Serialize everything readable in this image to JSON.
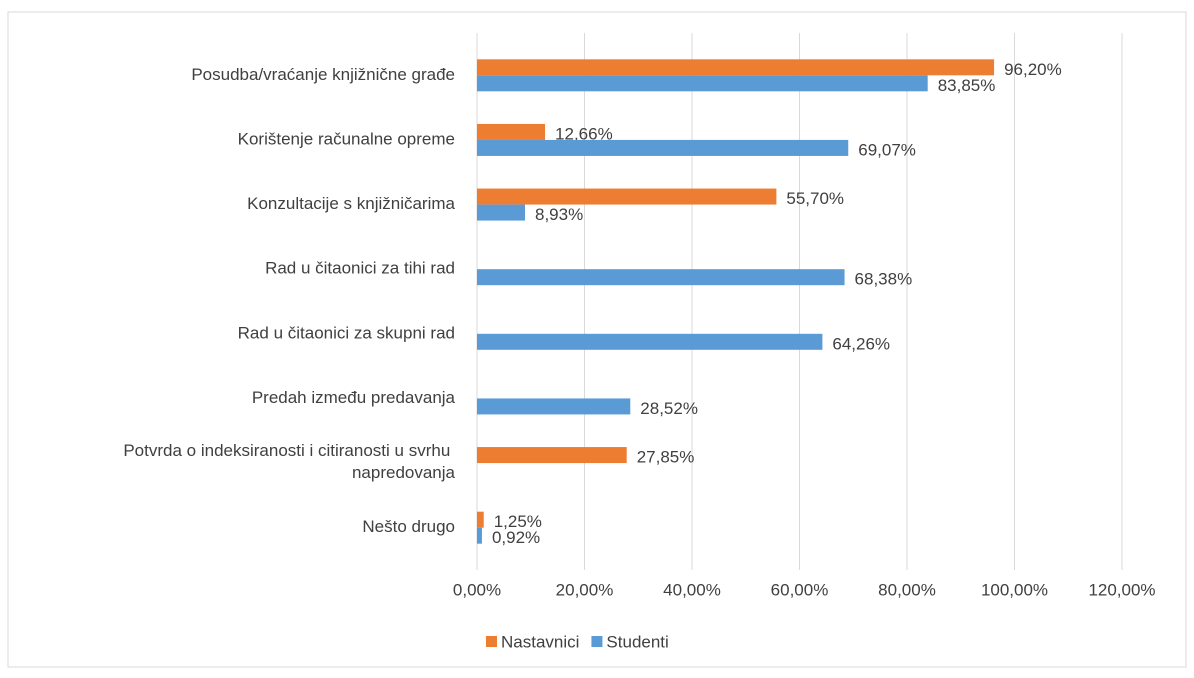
{
  "chart_data": {
    "type": "bar",
    "orientation": "horizontal",
    "categories": [
      "Posudba/vraćanje knjižnične građe",
      "Korištenje računalne opreme",
      "Konzultacije s knjižničarima",
      "Rad u čitaonici za tihi rad",
      "Rad u čitaonici za skupni rad",
      "Predah između predavanja",
      "Potvrda o indeksiranosti i citiranosti u svrhu napredovanja",
      "Nešto drugo"
    ],
    "series": [
      {
        "name": "Nastavnici",
        "color": "#ed7d31",
        "values": [
          96.2,
          12.66,
          55.7,
          null,
          null,
          null,
          27.85,
          1.25
        ],
        "value_labels": [
          "96,20%",
          "12,66%",
          "55,70%",
          null,
          null,
          null,
          "27,85%",
          "1,25%"
        ]
      },
      {
        "name": "Studenti",
        "color": "#5b9bd5",
        "values": [
          83.85,
          69.07,
          8.93,
          68.38,
          64.26,
          28.52,
          null,
          0.92
        ],
        "value_labels": [
          "83,85%",
          "69,07%",
          "8,93%",
          "68,38%",
          "64,26%",
          "28,52%",
          null,
          "0,92%"
        ]
      }
    ],
    "xlim": [
      0,
      120
    ],
    "xticks": [
      {
        "value": 0,
        "label": "0,00%"
      },
      {
        "value": 20,
        "label": "20,00%"
      },
      {
        "value": 40,
        "label": "40,00%"
      },
      {
        "value": 60,
        "label": "60,00%"
      },
      {
        "value": 80,
        "label": "80,00%"
      },
      {
        "value": 100,
        "label": "100,00%"
      },
      {
        "value": 120,
        "label": "120,00%"
      }
    ],
    "grid": true,
    "legend": "bottom"
  }
}
